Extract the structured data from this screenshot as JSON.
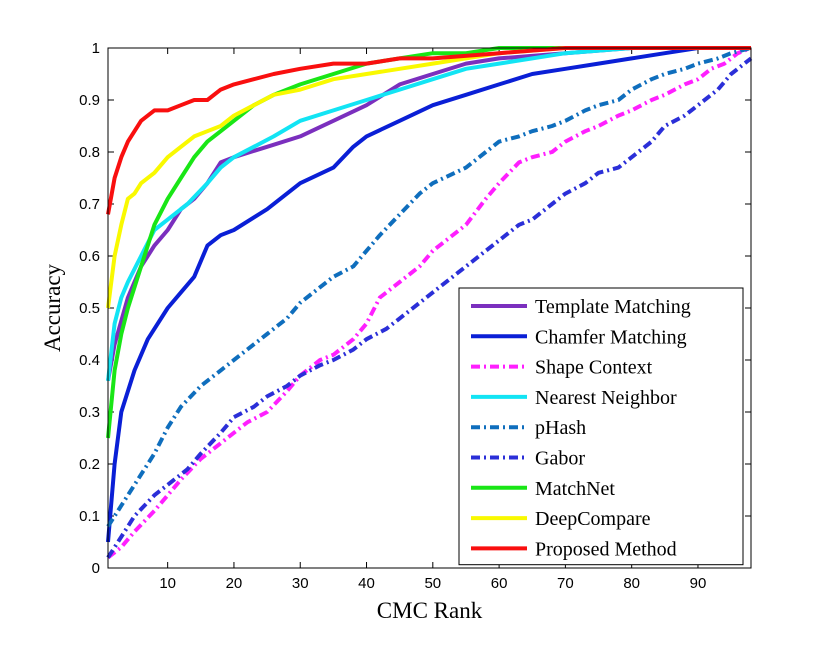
{
  "chart_data": {
    "type": "line",
    "title": "",
    "xlabel": "CMC Rank",
    "ylabel": "Accuracy",
    "xlim": [
      1,
      98
    ],
    "ylim": [
      0,
      1
    ],
    "xticks": [
      10,
      20,
      30,
      40,
      50,
      60,
      70,
      80,
      90
    ],
    "xtick_labels": [
      "10",
      "20",
      "30",
      "40",
      "50",
      "60",
      "70",
      "80",
      "90"
    ],
    "yticks": [
      0,
      0.1,
      0.2,
      0.3,
      0.4,
      0.5,
      0.6,
      0.7,
      0.8,
      0.9,
      1
    ],
    "ytick_labels": [
      "0",
      "0.1",
      "0.2",
      "0.3",
      "0.4",
      "0.5",
      "0.6",
      "0.7",
      "0.8",
      "0.9",
      "1"
    ],
    "legend_position": "bottom-right",
    "series": [
      {
        "name": "Template Matching",
        "color": "#7B2FBE",
        "dash": "solid",
        "x": [
          1,
          2,
          4,
          6,
          8,
          10,
          12,
          14,
          16,
          18,
          20,
          25,
          30,
          35,
          40,
          45,
          50,
          55,
          60,
          70,
          80,
          90,
          98
        ],
        "y": [
          0.36,
          0.43,
          0.52,
          0.58,
          0.62,
          0.65,
          0.69,
          0.71,
          0.74,
          0.78,
          0.79,
          0.81,
          0.83,
          0.86,
          0.89,
          0.93,
          0.95,
          0.97,
          0.98,
          0.99,
          1.0,
          1.0,
          1.0
        ]
      },
      {
        "name": "Chamfer Matching",
        "color": "#0A1FD6",
        "dash": "solid",
        "x": [
          1,
          2,
          3,
          5,
          7,
          10,
          12,
          14,
          16,
          18,
          20,
          25,
          30,
          35,
          38,
          40,
          45,
          50,
          55,
          60,
          65,
          70,
          75,
          80,
          85,
          90,
          98
        ],
        "y": [
          0.05,
          0.2,
          0.3,
          0.38,
          0.44,
          0.5,
          0.53,
          0.56,
          0.62,
          0.64,
          0.65,
          0.69,
          0.74,
          0.77,
          0.81,
          0.83,
          0.86,
          0.89,
          0.91,
          0.93,
          0.95,
          0.96,
          0.97,
          0.98,
          0.99,
          1.0,
          1.0
        ]
      },
      {
        "name": "Shape Context",
        "color": "#FF1FFF",
        "dash": "dashdot",
        "x": [
          1,
          3,
          5,
          8,
          10,
          12,
          15,
          18,
          20,
          22,
          25,
          28,
          30,
          33,
          35,
          38,
          40,
          42,
          45,
          48,
          50,
          53,
          55,
          58,
          60,
          63,
          65,
          68,
          70,
          73,
          75,
          78,
          80,
          83,
          85,
          88,
          90,
          92,
          94,
          96,
          98
        ],
        "y": [
          0.02,
          0.04,
          0.07,
          0.11,
          0.14,
          0.17,
          0.21,
          0.24,
          0.26,
          0.28,
          0.3,
          0.34,
          0.37,
          0.4,
          0.41,
          0.44,
          0.47,
          0.52,
          0.55,
          0.58,
          0.61,
          0.64,
          0.66,
          0.71,
          0.74,
          0.78,
          0.79,
          0.8,
          0.82,
          0.84,
          0.85,
          0.87,
          0.88,
          0.9,
          0.91,
          0.93,
          0.94,
          0.96,
          0.97,
          0.99,
          1.0
        ]
      },
      {
        "name": "Nearest Neighbor",
        "color": "#12E4F4",
        "dash": "solid",
        "x": [
          1,
          2,
          3,
          4,
          6,
          8,
          10,
          13,
          16,
          18,
          20,
          23,
          26,
          30,
          35,
          40,
          45,
          50,
          55,
          60,
          70,
          80,
          90,
          98
        ],
        "y": [
          0.36,
          0.47,
          0.52,
          0.55,
          0.6,
          0.65,
          0.67,
          0.7,
          0.74,
          0.77,
          0.79,
          0.81,
          0.83,
          0.86,
          0.88,
          0.9,
          0.92,
          0.94,
          0.96,
          0.97,
          0.99,
          1.0,
          1.0,
          1.0
        ]
      },
      {
        "name": "pHash",
        "color": "#0F6EBD",
        "dash": "dashdot",
        "x": [
          1,
          3,
          5,
          8,
          10,
          12,
          15,
          18,
          20,
          22,
          25,
          28,
          30,
          32,
          35,
          38,
          40,
          42,
          45,
          48,
          50,
          55,
          58,
          60,
          63,
          65,
          68,
          70,
          73,
          75,
          78,
          80,
          83,
          85,
          88,
          90,
          93,
          95,
          98
        ],
        "y": [
          0.08,
          0.12,
          0.16,
          0.22,
          0.27,
          0.31,
          0.35,
          0.38,
          0.4,
          0.42,
          0.45,
          0.48,
          0.51,
          0.53,
          0.56,
          0.58,
          0.61,
          0.64,
          0.68,
          0.72,
          0.74,
          0.77,
          0.8,
          0.82,
          0.83,
          0.84,
          0.85,
          0.86,
          0.88,
          0.89,
          0.9,
          0.92,
          0.94,
          0.95,
          0.96,
          0.97,
          0.98,
          0.99,
          1.0
        ]
      },
      {
        "name": "Gabor",
        "color": "#2B2FD8",
        "dash": "dashdot",
        "x": [
          1,
          3,
          5,
          8,
          10,
          13,
          15,
          18,
          20,
          23,
          25,
          28,
          30,
          33,
          35,
          38,
          40,
          43,
          45,
          48,
          50,
          53,
          55,
          58,
          60,
          63,
          65,
          68,
          70,
          73,
          75,
          78,
          80,
          83,
          85,
          88,
          90,
          93,
          95,
          98
        ],
        "y": [
          0.02,
          0.06,
          0.1,
          0.14,
          0.16,
          0.19,
          0.22,
          0.26,
          0.29,
          0.31,
          0.33,
          0.35,
          0.37,
          0.39,
          0.4,
          0.42,
          0.44,
          0.46,
          0.48,
          0.51,
          0.53,
          0.56,
          0.58,
          0.61,
          0.63,
          0.66,
          0.67,
          0.7,
          0.72,
          0.74,
          0.76,
          0.77,
          0.79,
          0.82,
          0.85,
          0.87,
          0.89,
          0.92,
          0.95,
          0.98
        ]
      },
      {
        "name": "MatchNet",
        "color": "#19E616",
        "dash": "solid",
        "x": [
          1,
          2,
          3,
          4,
          6,
          8,
          10,
          12,
          14,
          16,
          18,
          20,
          23,
          26,
          30,
          35,
          40,
          45,
          50,
          55,
          60,
          70,
          80,
          90,
          98
        ],
        "y": [
          0.25,
          0.38,
          0.45,
          0.5,
          0.58,
          0.66,
          0.71,
          0.75,
          0.79,
          0.82,
          0.84,
          0.86,
          0.89,
          0.91,
          0.93,
          0.95,
          0.97,
          0.98,
          0.99,
          0.99,
          1.0,
          1.0,
          1.0,
          1.0,
          1.0
        ]
      },
      {
        "name": "DeepCompare",
        "color": "#F9F900",
        "dash": "solid",
        "x": [
          1,
          2,
          3,
          4,
          5,
          6,
          8,
          10,
          12,
          14,
          16,
          18,
          20,
          23,
          26,
          30,
          35,
          40,
          45,
          50,
          55,
          60,
          70,
          80,
          90,
          98
        ],
        "y": [
          0.5,
          0.6,
          0.66,
          0.71,
          0.72,
          0.74,
          0.76,
          0.79,
          0.81,
          0.83,
          0.84,
          0.85,
          0.87,
          0.89,
          0.91,
          0.92,
          0.94,
          0.95,
          0.96,
          0.97,
          0.98,
          0.99,
          1.0,
          1.0,
          1.0,
          1.0
        ]
      },
      {
        "name": "Proposed Method",
        "color": "#F90F0F",
        "dash": "solid",
        "x": [
          1,
          2,
          3,
          4,
          5,
          6,
          7,
          8,
          10,
          12,
          14,
          16,
          18,
          20,
          23,
          26,
          30,
          35,
          40,
          45,
          50,
          60,
          70,
          80,
          90,
          98
        ],
        "y": [
          0.68,
          0.75,
          0.79,
          0.82,
          0.84,
          0.86,
          0.87,
          0.88,
          0.88,
          0.89,
          0.9,
          0.9,
          0.92,
          0.93,
          0.94,
          0.95,
          0.96,
          0.97,
          0.97,
          0.98,
          0.98,
          0.99,
          1.0,
          1.0,
          1.0,
          1.0
        ]
      }
    ]
  }
}
